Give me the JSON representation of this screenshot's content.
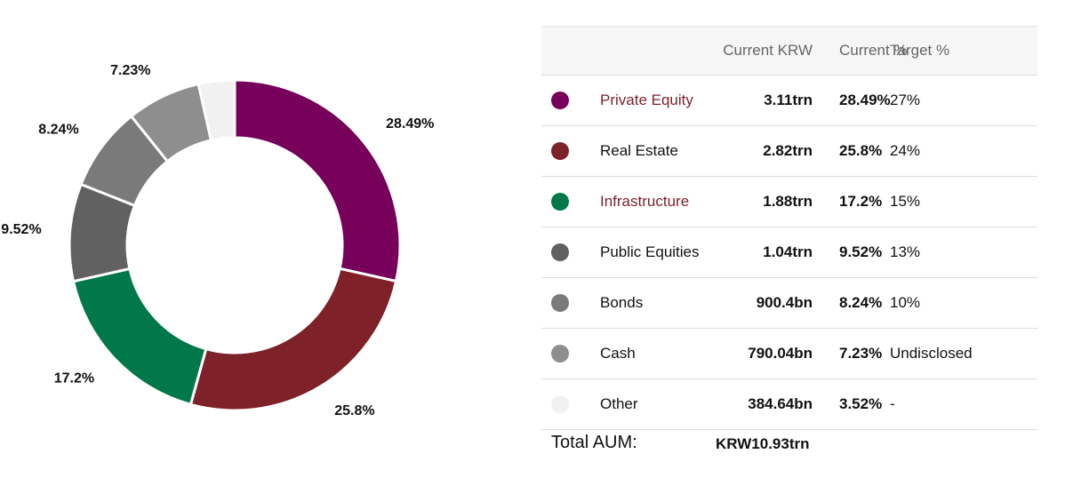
{
  "chart_data": {
    "type": "pie",
    "variant": "donut",
    "categories": [
      "Private Equity",
      "Real Estate",
      "Infrastructure",
      "Public Equities",
      "Bonds",
      "Cash",
      "Other"
    ],
    "values": [
      28.49,
      25.8,
      17.2,
      9.52,
      8.24,
      7.23,
      3.52
    ],
    "labels": [
      "28.49%",
      "25.8%",
      "17.2%",
      "9.52%",
      "8.24%",
      "7.23%",
      ""
    ],
    "colors": [
      "#76005a",
      "#7e2128",
      "#00784a",
      "#616161",
      "#7a7a7a",
      "#8e8e8e",
      "#f1f1f1"
    ]
  },
  "table": {
    "headers": {
      "current_krw": "Current KRW",
      "current_pct": "Current %",
      "target_pct": "Target %"
    },
    "rows": [
      {
        "name": "Private Equity",
        "krw": "3.11trn",
        "current": "28.49%",
        "target": "27%",
        "color": "#76005a",
        "link": true
      },
      {
        "name": "Real Estate",
        "krw": "2.82trn",
        "current": "25.8%",
        "target": "24%",
        "color": "#7e2128",
        "link": false
      },
      {
        "name": "Infrastructure",
        "krw": "1.88trn",
        "current": "17.2%",
        "target": "15%",
        "color": "#00784a",
        "link": true
      },
      {
        "name": "Public Equities",
        "krw": "1.04trn",
        "current": "9.52%",
        "target": "13%",
        "color": "#616161",
        "link": false
      },
      {
        "name": "Bonds",
        "krw": "900.4bn",
        "current": "8.24%",
        "target": "10%",
        "color": "#7a7a7a",
        "link": false
      },
      {
        "name": "Cash",
        "krw": "790.04bn",
        "current": "7.23%",
        "target": "Undisclosed",
        "color": "#8e8e8e",
        "link": false
      },
      {
        "name": "Other",
        "krw": "384.64bn",
        "current": "3.52%",
        "target": "-",
        "color": "#f1f1f1",
        "link": false
      }
    ]
  },
  "total": {
    "label": "Total AUM:",
    "value": "KRW10.93trn"
  }
}
